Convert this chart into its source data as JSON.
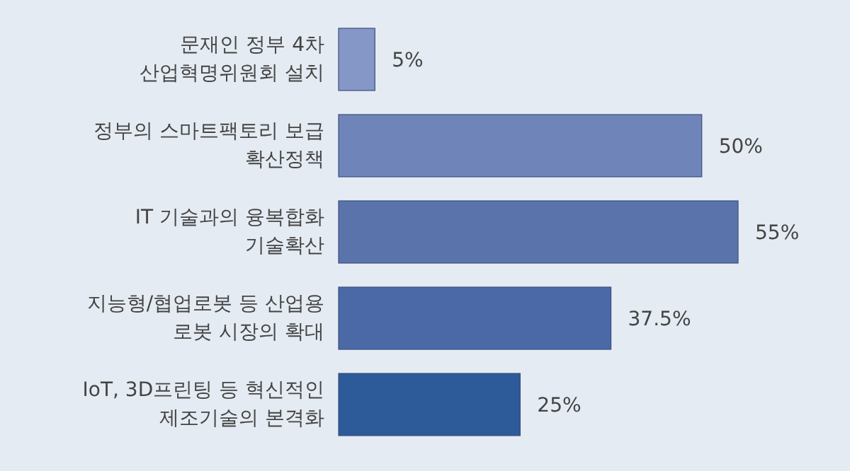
{
  "chart_data": {
    "type": "bar",
    "orientation": "horizontal",
    "categories": [
      "문재인 정부 4차 산업혁명위원회 설치",
      "정부의 스마트팩토리 보급 확산정책",
      "IT 기술과의 융복합화 기술확산",
      "지능형/협업로봇 등 산업용 로봇 시장의 확대",
      "IoT, 3D프린팅 등 혁신적인 제조기술의 본격화"
    ],
    "values": [
      5,
      50,
      55,
      37.5,
      25
    ],
    "value_labels": [
      "5%",
      "50%",
      "55%",
      "37.5%",
      "25%"
    ],
    "colors": [
      "#8497c6",
      "#6f84b8",
      "#5a73ab",
      "#4a69a6",
      "#2d5a98"
    ]
  }
}
